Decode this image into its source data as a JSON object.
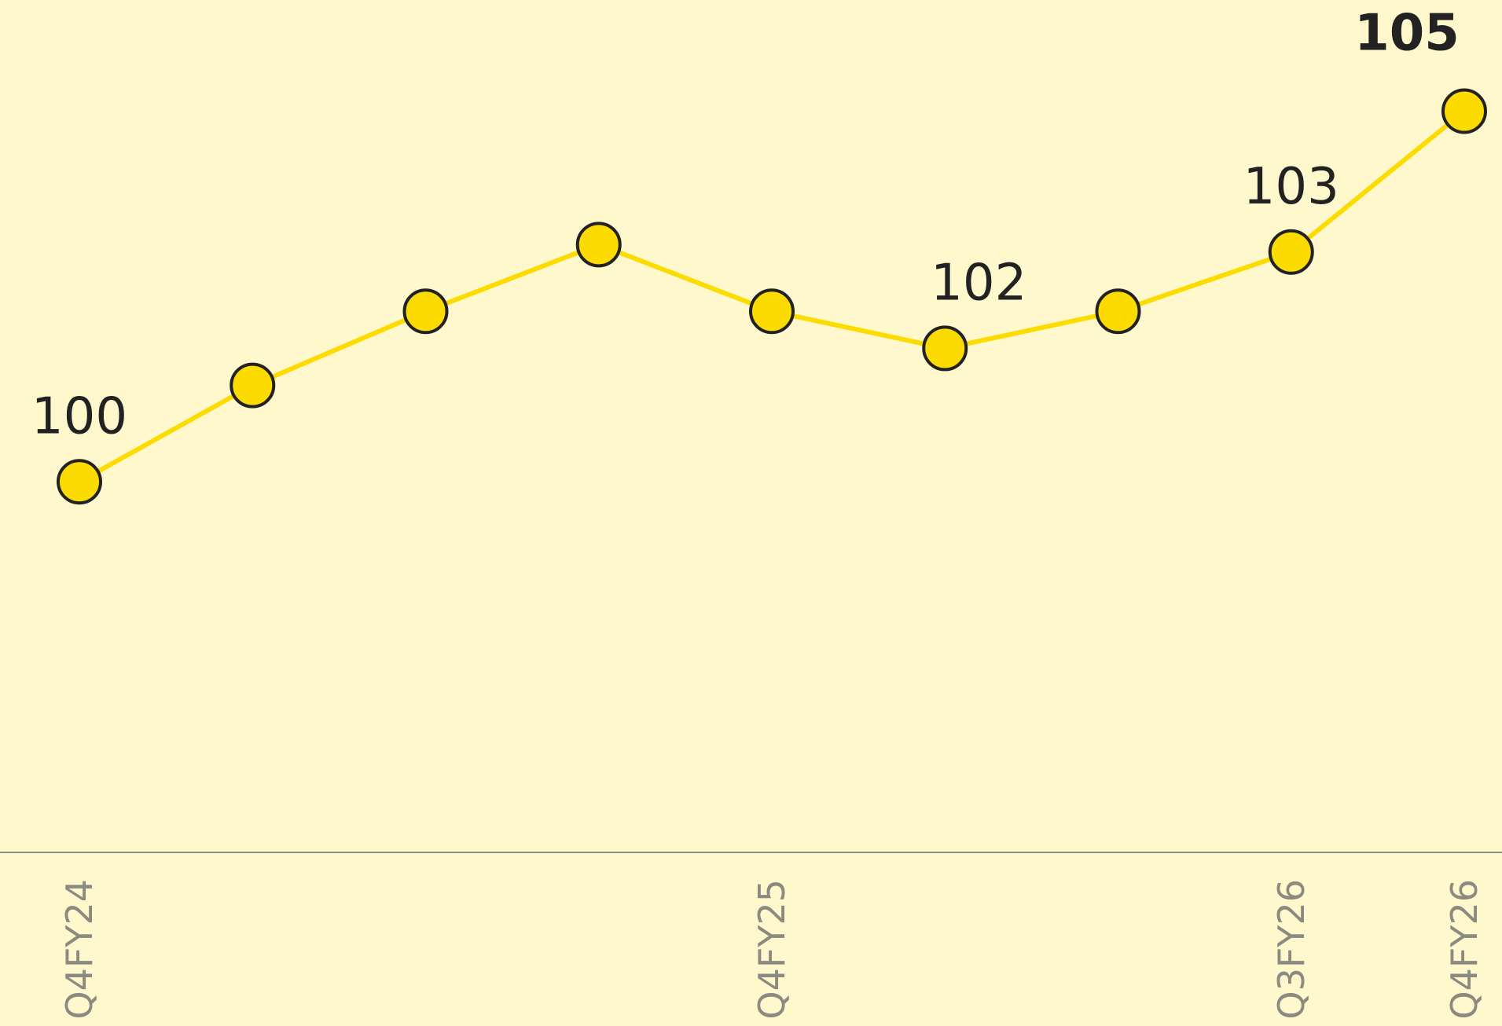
{
  "chart_data": {
    "type": "line",
    "categories": [
      "Q4FY24",
      null,
      null,
      null,
      "Q4FY25",
      null,
      null,
      "Q3FY26",
      "Q4FY26"
    ],
    "series": [
      {
        "color": "#fcdc00",
        "values": [
          100,
          101.3,
          102.3,
          103.2,
          102.3,
          101.8,
          102.3,
          103.1,
          105
        ],
        "value_labels": [
          "100",
          null,
          null,
          null,
          null,
          "102",
          null,
          "103",
          "105"
        ]
      }
    ],
    "ylim": [
      95,
      106.5
    ]
  }
}
